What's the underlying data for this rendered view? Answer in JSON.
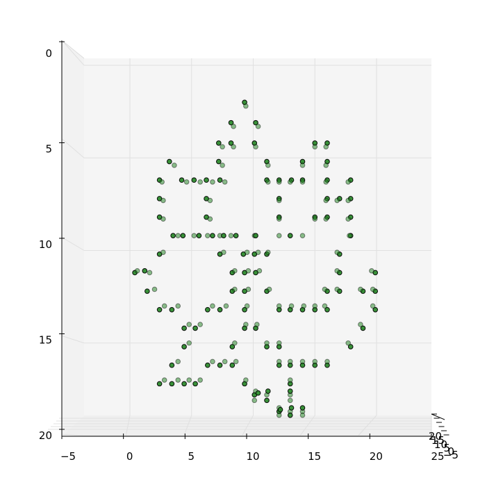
{
  "chart_data": {
    "type": "scatter",
    "projection": "3d",
    "title": "",
    "xlabel": "",
    "ylabel": "",
    "zlabel": "",
    "grid": true,
    "x_ticks": [
      -5,
      0,
      5,
      10,
      15,
      20,
      25
    ],
    "y_ticks": [
      0,
      5,
      10,
      15,
      20
    ],
    "z_ticks": [
      -5,
      0,
      5,
      10,
      15,
      20
    ],
    "x_tick_labels": [
      "−5",
      "0",
      "5",
      "10",
      "15",
      "20",
      "25"
    ],
    "y_tick_labels": [
      "0",
      "5",
      "10",
      "15",
      "20"
    ],
    "z_tick_labels": [
      "−5",
      "0",
      "5",
      "10",
      "15",
      "20"
    ],
    "xlim": [
      -5,
      25
    ],
    "ylim": [
      20,
      0
    ],
    "marker_color": "#2e8b2e",
    "marker_edge_color": "#000000",
    "pane_color": "#f5f5f5",
    "grid_color": "#e0e0e0",
    "points": [
      [
        9.3,
        2.0
      ],
      [
        9.4,
        2.2
      ],
      [
        8.2,
        3.1
      ],
      [
        8.4,
        3.3
      ],
      [
        10.2,
        3.1
      ],
      [
        10.4,
        3.3
      ],
      [
        7.2,
        4.2
      ],
      [
        7.5,
        4.4
      ],
      [
        8.2,
        4.2
      ],
      [
        8.4,
        4.4
      ],
      [
        10.1,
        4.2
      ],
      [
        10.2,
        4.4
      ],
      [
        15.0,
        4.2
      ],
      [
        15.0,
        4.4
      ],
      [
        16.0,
        4.2
      ],
      [
        15.9,
        4.4
      ],
      [
        3.2,
        5.2
      ],
      [
        3.6,
        5.4
      ],
      [
        7.2,
        5.2
      ],
      [
        7.5,
        5.4
      ],
      [
        11.1,
        5.2
      ],
      [
        11.2,
        5.4
      ],
      [
        14.0,
        5.2
      ],
      [
        14.0,
        5.4
      ],
      [
        16.0,
        5.2
      ],
      [
        15.9,
        5.4
      ],
      [
        2.4,
        6.2
      ],
      [
        2.6,
        6.3
      ],
      [
        4.2,
        6.2
      ],
      [
        4.6,
        6.3
      ],
      [
        5.2,
        6.2
      ],
      [
        5.7,
        6.3
      ],
      [
        6.2,
        6.2
      ],
      [
        6.7,
        6.3
      ],
      [
        7.3,
        6.2
      ],
      [
        7.7,
        6.3
      ],
      [
        11.1,
        6.2
      ],
      [
        11.2,
        6.3
      ],
      [
        12.1,
        6.2
      ],
      [
        12.1,
        6.3
      ],
      [
        13.1,
        6.2
      ],
      [
        13.0,
        6.3
      ],
      [
        14.0,
        6.2
      ],
      [
        14.0,
        6.3
      ],
      [
        16.0,
        6.2
      ],
      [
        15.9,
        6.3
      ],
      [
        17.9,
        6.2
      ],
      [
        17.7,
        6.3
      ],
      [
        2.4,
        7.2
      ],
      [
        2.7,
        7.3
      ],
      [
        6.2,
        7.2
      ],
      [
        6.5,
        7.3
      ],
      [
        12.1,
        7.2
      ],
      [
        12.1,
        7.3
      ],
      [
        16.0,
        7.2
      ],
      [
        15.9,
        7.3
      ],
      [
        17.0,
        7.2
      ],
      [
        16.8,
        7.3
      ],
      [
        17.9,
        7.2
      ],
      [
        17.7,
        7.3
      ],
      [
        2.4,
        8.2
      ],
      [
        2.7,
        8.3
      ],
      [
        6.2,
        8.2
      ],
      [
        6.5,
        8.3
      ],
      [
        12.1,
        8.2
      ],
      [
        12.1,
        8.3
      ],
      [
        15.0,
        8.2
      ],
      [
        15.0,
        8.3
      ],
      [
        16.0,
        8.2
      ],
      [
        15.9,
        8.3
      ],
      [
        17.9,
        8.2
      ],
      [
        17.7,
        8.3
      ],
      [
        3.5,
        9.2
      ],
      [
        3.9,
        9.2
      ],
      [
        4.3,
        9.2
      ],
      [
        5.2,
        9.2
      ],
      [
        5.6,
        9.2
      ],
      [
        6.3,
        9.2
      ],
      [
        6.7,
        9.2
      ],
      [
        7.3,
        9.2
      ],
      [
        7.6,
        9.2
      ],
      [
        8.2,
        9.2
      ],
      [
        8.6,
        9.2
      ],
      [
        10.1,
        9.2
      ],
      [
        10.2,
        9.2
      ],
      [
        12.1,
        9.2
      ],
      [
        13.0,
        9.2
      ],
      [
        14.0,
        9.2
      ],
      [
        17.9,
        9.2
      ],
      [
        17.8,
        9.2
      ],
      [
        2.4,
        10.2
      ],
      [
        2.7,
        10.1
      ],
      [
        7.3,
        10.2
      ],
      [
        7.6,
        10.1
      ],
      [
        9.2,
        10.2
      ],
      [
        9.5,
        10.1
      ],
      [
        10.1,
        10.2
      ],
      [
        10.4,
        10.1
      ],
      [
        11.1,
        10.2
      ],
      [
        11.2,
        10.1
      ],
      [
        17.0,
        10.2
      ],
      [
        16.8,
        10.1
      ],
      [
        0.4,
        11.2
      ],
      [
        0.6,
        11.1
      ],
      [
        1.2,
        11.1
      ],
      [
        1.6,
        11.2
      ],
      [
        8.3,
        11.2
      ],
      [
        8.5,
        11.1
      ],
      [
        9.3,
        11.2
      ],
      [
        9.6,
        11.1
      ],
      [
        10.2,
        11.2
      ],
      [
        10.5,
        11.1
      ],
      [
        17.0,
        11.2
      ],
      [
        16.8,
        11.1
      ],
      [
        19.9,
        11.2
      ],
      [
        19.6,
        11.1
      ],
      [
        1.4,
        12.2
      ],
      [
        2.0,
        12.1
      ],
      [
        8.3,
        12.2
      ],
      [
        8.5,
        12.1
      ],
      [
        9.3,
        12.2
      ],
      [
        9.6,
        12.1
      ],
      [
        11.1,
        12.2
      ],
      [
        11.3,
        12.1
      ],
      [
        16.0,
        12.2
      ],
      [
        15.8,
        12.1
      ],
      [
        17.0,
        12.2
      ],
      [
        16.8,
        12.1
      ],
      [
        18.9,
        12.2
      ],
      [
        18.7,
        12.1
      ],
      [
        19.9,
        12.2
      ],
      [
        19.7,
        12.1
      ],
      [
        2.4,
        13.2
      ],
      [
        2.8,
        13.0
      ],
      [
        3.4,
        13.2
      ],
      [
        3.9,
        13.0
      ],
      [
        6.3,
        13.2
      ],
      [
        6.7,
        13.0
      ],
      [
        7.3,
        13.2
      ],
      [
        7.8,
        13.0
      ],
      [
        9.3,
        13.2
      ],
      [
        9.5,
        13.0
      ],
      [
        12.1,
        13.2
      ],
      [
        12.1,
        13.0
      ],
      [
        13.0,
        13.2
      ],
      [
        13.1,
        13.0
      ],
      [
        14.0,
        13.2
      ],
      [
        14.1,
        13.0
      ],
      [
        15.0,
        13.2
      ],
      [
        15.0,
        13.0
      ],
      [
        16.0,
        13.2
      ],
      [
        15.8,
        13.0
      ],
      [
        19.9,
        13.2
      ],
      [
        19.7,
        13.0
      ],
      [
        4.4,
        14.2
      ],
      [
        4.8,
        14.0
      ],
      [
        5.3,
        14.2
      ],
      [
        5.7,
        14.0
      ],
      [
        9.3,
        14.2
      ],
      [
        9.4,
        14.0
      ],
      [
        10.2,
        14.2
      ],
      [
        10.3,
        14.0
      ],
      [
        18.9,
        14.2
      ],
      [
        18.7,
        14.0
      ],
      [
        4.4,
        15.2
      ],
      [
        4.8,
        15.0
      ],
      [
        8.3,
        15.2
      ],
      [
        8.5,
        15.0
      ],
      [
        11.1,
        15.2
      ],
      [
        11.1,
        15.0
      ],
      [
        12.1,
        15.2
      ],
      [
        12.1,
        15.0
      ],
      [
        17.9,
        15.2
      ],
      [
        17.7,
        15.0
      ],
      [
        3.4,
        16.2
      ],
      [
        3.9,
        16.0
      ],
      [
        6.3,
        16.2
      ],
      [
        6.7,
        16.0
      ],
      [
        7.3,
        16.2
      ],
      [
        7.7,
        16.0
      ],
      [
        8.3,
        16.2
      ],
      [
        8.6,
        16.0
      ],
      [
        12.1,
        16.2
      ],
      [
        12.1,
        16.0
      ],
      [
        13.0,
        16.2
      ],
      [
        13.0,
        16.0
      ],
      [
        14.0,
        16.2
      ],
      [
        14.0,
        16.0
      ],
      [
        15.0,
        16.2
      ],
      [
        15.0,
        16.0
      ],
      [
        16.0,
        16.2
      ],
      [
        16.0,
        16.0
      ],
      [
        2.4,
        17.2
      ],
      [
        2.8,
        17.0
      ],
      [
        3.4,
        17.2
      ],
      [
        3.9,
        17.0
      ],
      [
        4.4,
        17.2
      ],
      [
        4.8,
        17.0
      ],
      [
        5.3,
        17.2
      ],
      [
        5.7,
        17.0
      ],
      [
        9.3,
        17.2
      ],
      [
        9.4,
        17.0
      ],
      [
        13.0,
        17.2
      ],
      [
        13.0,
        17.0
      ],
      [
        10.1,
        17.8
      ],
      [
        10.2,
        17.6
      ],
      [
        10.4,
        17.7
      ],
      [
        11.1,
        17.8
      ],
      [
        11.2,
        17.6
      ],
      [
        13.0,
        17.8
      ],
      [
        13.0,
        17.6
      ],
      [
        10.1,
        18.1
      ],
      [
        11.1,
        18.1
      ],
      [
        13.0,
        18.1
      ],
      [
        12.1,
        18.7
      ],
      [
        12.1,
        18.5
      ],
      [
        12.2,
        18.6
      ],
      [
        13.0,
        18.7
      ],
      [
        13.1,
        18.5
      ],
      [
        14.0,
        18.7
      ],
      [
        14.0,
        18.5
      ],
      [
        12.1,
        18.9
      ],
      [
        13.0,
        18.9
      ],
      [
        14.0,
        18.9
      ]
    ]
  }
}
